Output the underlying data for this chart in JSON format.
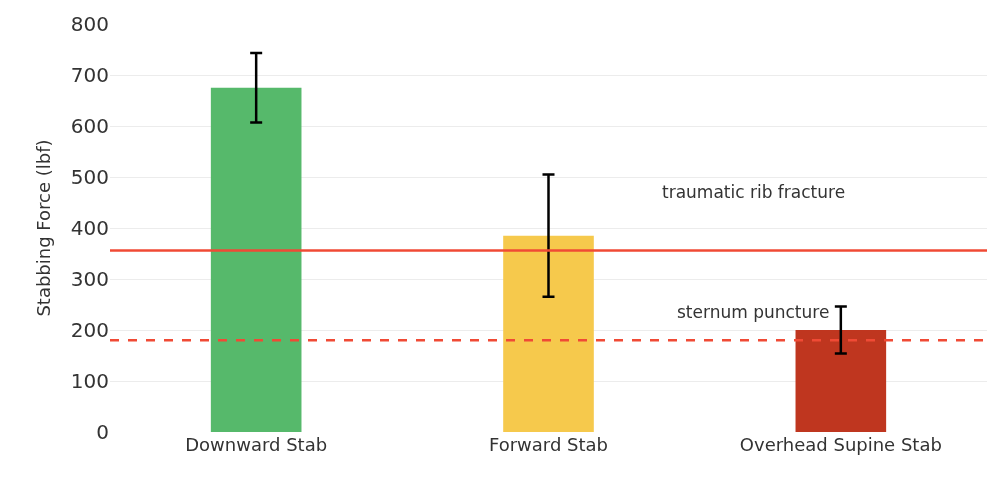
{
  "chart_data": {
    "type": "bar",
    "ylabel": "Stabbing Force (lbf)",
    "categories": [
      "Downward Stab",
      "Forward Stab",
      "Overhead Supine Stab"
    ],
    "values": [
      675,
      385,
      200
    ],
    "colors": [
      "#56b96b",
      "#f6c94c",
      "#bf361f"
    ],
    "errors": [
      68,
      120,
      46
    ],
    "ylim": [
      0,
      800
    ],
    "yticks": [
      0,
      100,
      200,
      300,
      400,
      500,
      600,
      700,
      800
    ],
    "grid": "y",
    "ref_lines": [
      {
        "axis": "y",
        "value": 356,
        "label": "traumatic rib fracture",
        "color": "#f04a35",
        "line_style": "solid"
      },
      {
        "axis": "y",
        "value": 180,
        "label": "sternum puncture",
        "color": "#f04a35",
        "line_style": "dashed"
      }
    ]
  }
}
